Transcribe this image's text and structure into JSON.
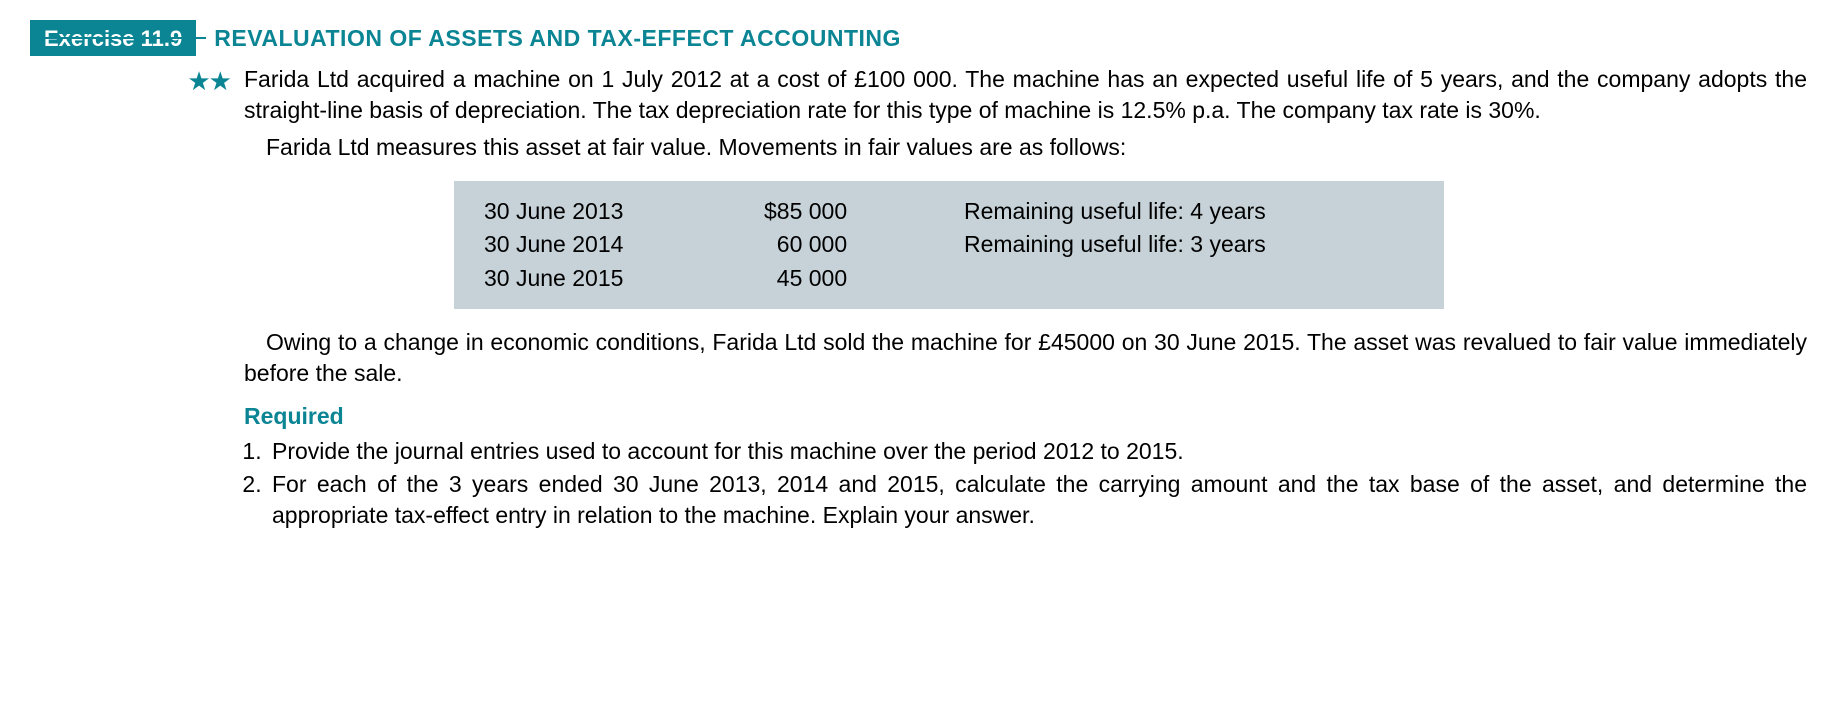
{
  "exercise": {
    "badge": "Exercise 11.9",
    "title": "REVALUATION OF ASSETS AND TAX-EFFECT ACCOUNTING",
    "difficulty_stars": "★★"
  },
  "colors": {
    "accent_teal": "#0b8594",
    "table_bg": "#c6d2d8",
    "text": "#000000",
    "page_bg": "#ffffff"
  },
  "body": {
    "p1": "Farida Ltd acquired a machine on 1 July 2012 at a cost of £100 000. The machine has an expected useful life of 5 years, and the company adopts the straight-line basis of depreciation. The tax depreciation rate for this type of machine is 12.5% p.a. The company tax rate is 30%.",
    "p2": "Farida Ltd measures this asset at fair value. Movements in fair values are as follows:",
    "p3": "Owing to a change in economic conditions, Farida Ltd sold the machine for £45000 on 30 June 2015. The asset was revalued to fair value immediately before the sale."
  },
  "fair_value_table": {
    "rows": [
      {
        "date": "30 June 2013",
        "amount": "$85 000",
        "life": "Remaining useful life: 4 years"
      },
      {
        "date": "30 June 2014",
        "amount": "  60 000",
        "life": "Remaining useful life: 3 years"
      },
      {
        "date": "30 June 2015",
        "amount": "  45 000",
        "life": ""
      }
    ]
  },
  "required": {
    "heading": "Required",
    "items": [
      "Provide the journal entries used to account for this machine over the period 2012 to 2015.",
      "For each of the 3 years ended 30 June 2013, 2014 and 2015, calculate the carrying amount and the tax base of the asset, and determine the appropriate tax-effect entry in relation to the machine. Explain your answer."
    ]
  }
}
